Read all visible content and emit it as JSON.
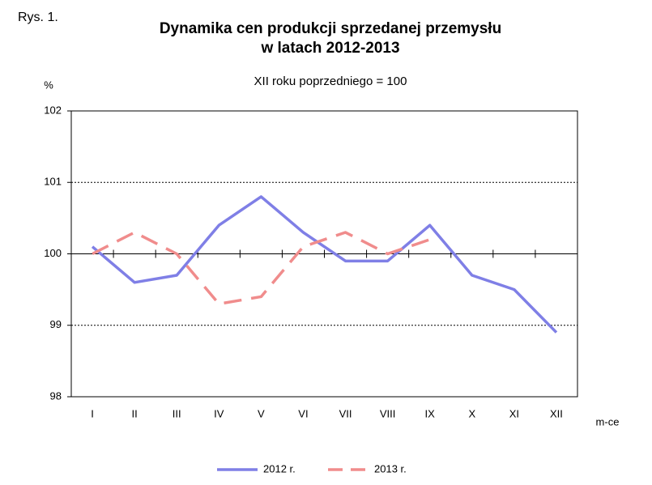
{
  "chart_data": {
    "type": "line",
    "label": "Rys. 1.",
    "title": [
      "Dynamika cen produkcji sprzedanej przemysłu",
      "w latach 2012-2013"
    ],
    "subtitle": "XII roku poprzedniego = 100",
    "y_label": "%",
    "x_label": "m-ce",
    "categories": [
      "I",
      "II",
      "III",
      "IV",
      "V",
      "VI",
      "VII",
      "VIII",
      "IX",
      "X",
      "XI",
      "XII"
    ],
    "series": [
      {
        "name": "2012 r.",
        "color": "#7f7fe6",
        "line_style": "solid",
        "values": [
          100.1,
          99.6,
          99.7,
          100.4,
          100.8,
          100.3,
          99.9,
          99.9,
          100.4,
          99.7,
          99.5,
          98.9
        ]
      },
      {
        "name": "2013 r.",
        "color": "#f08c8c",
        "line_style": "dashed",
        "values": [
          100.0,
          100.3,
          100.0,
          99.3,
          99.4,
          100.1,
          100.3,
          100.0,
          100.2,
          null,
          null,
          null
        ]
      }
    ],
    "ylim": [
      98,
      102
    ],
    "yticks": [
      98,
      99,
      100,
      101,
      102
    ],
    "x_axis_at": 100,
    "grid": true,
    "legend": "bottom"
  }
}
